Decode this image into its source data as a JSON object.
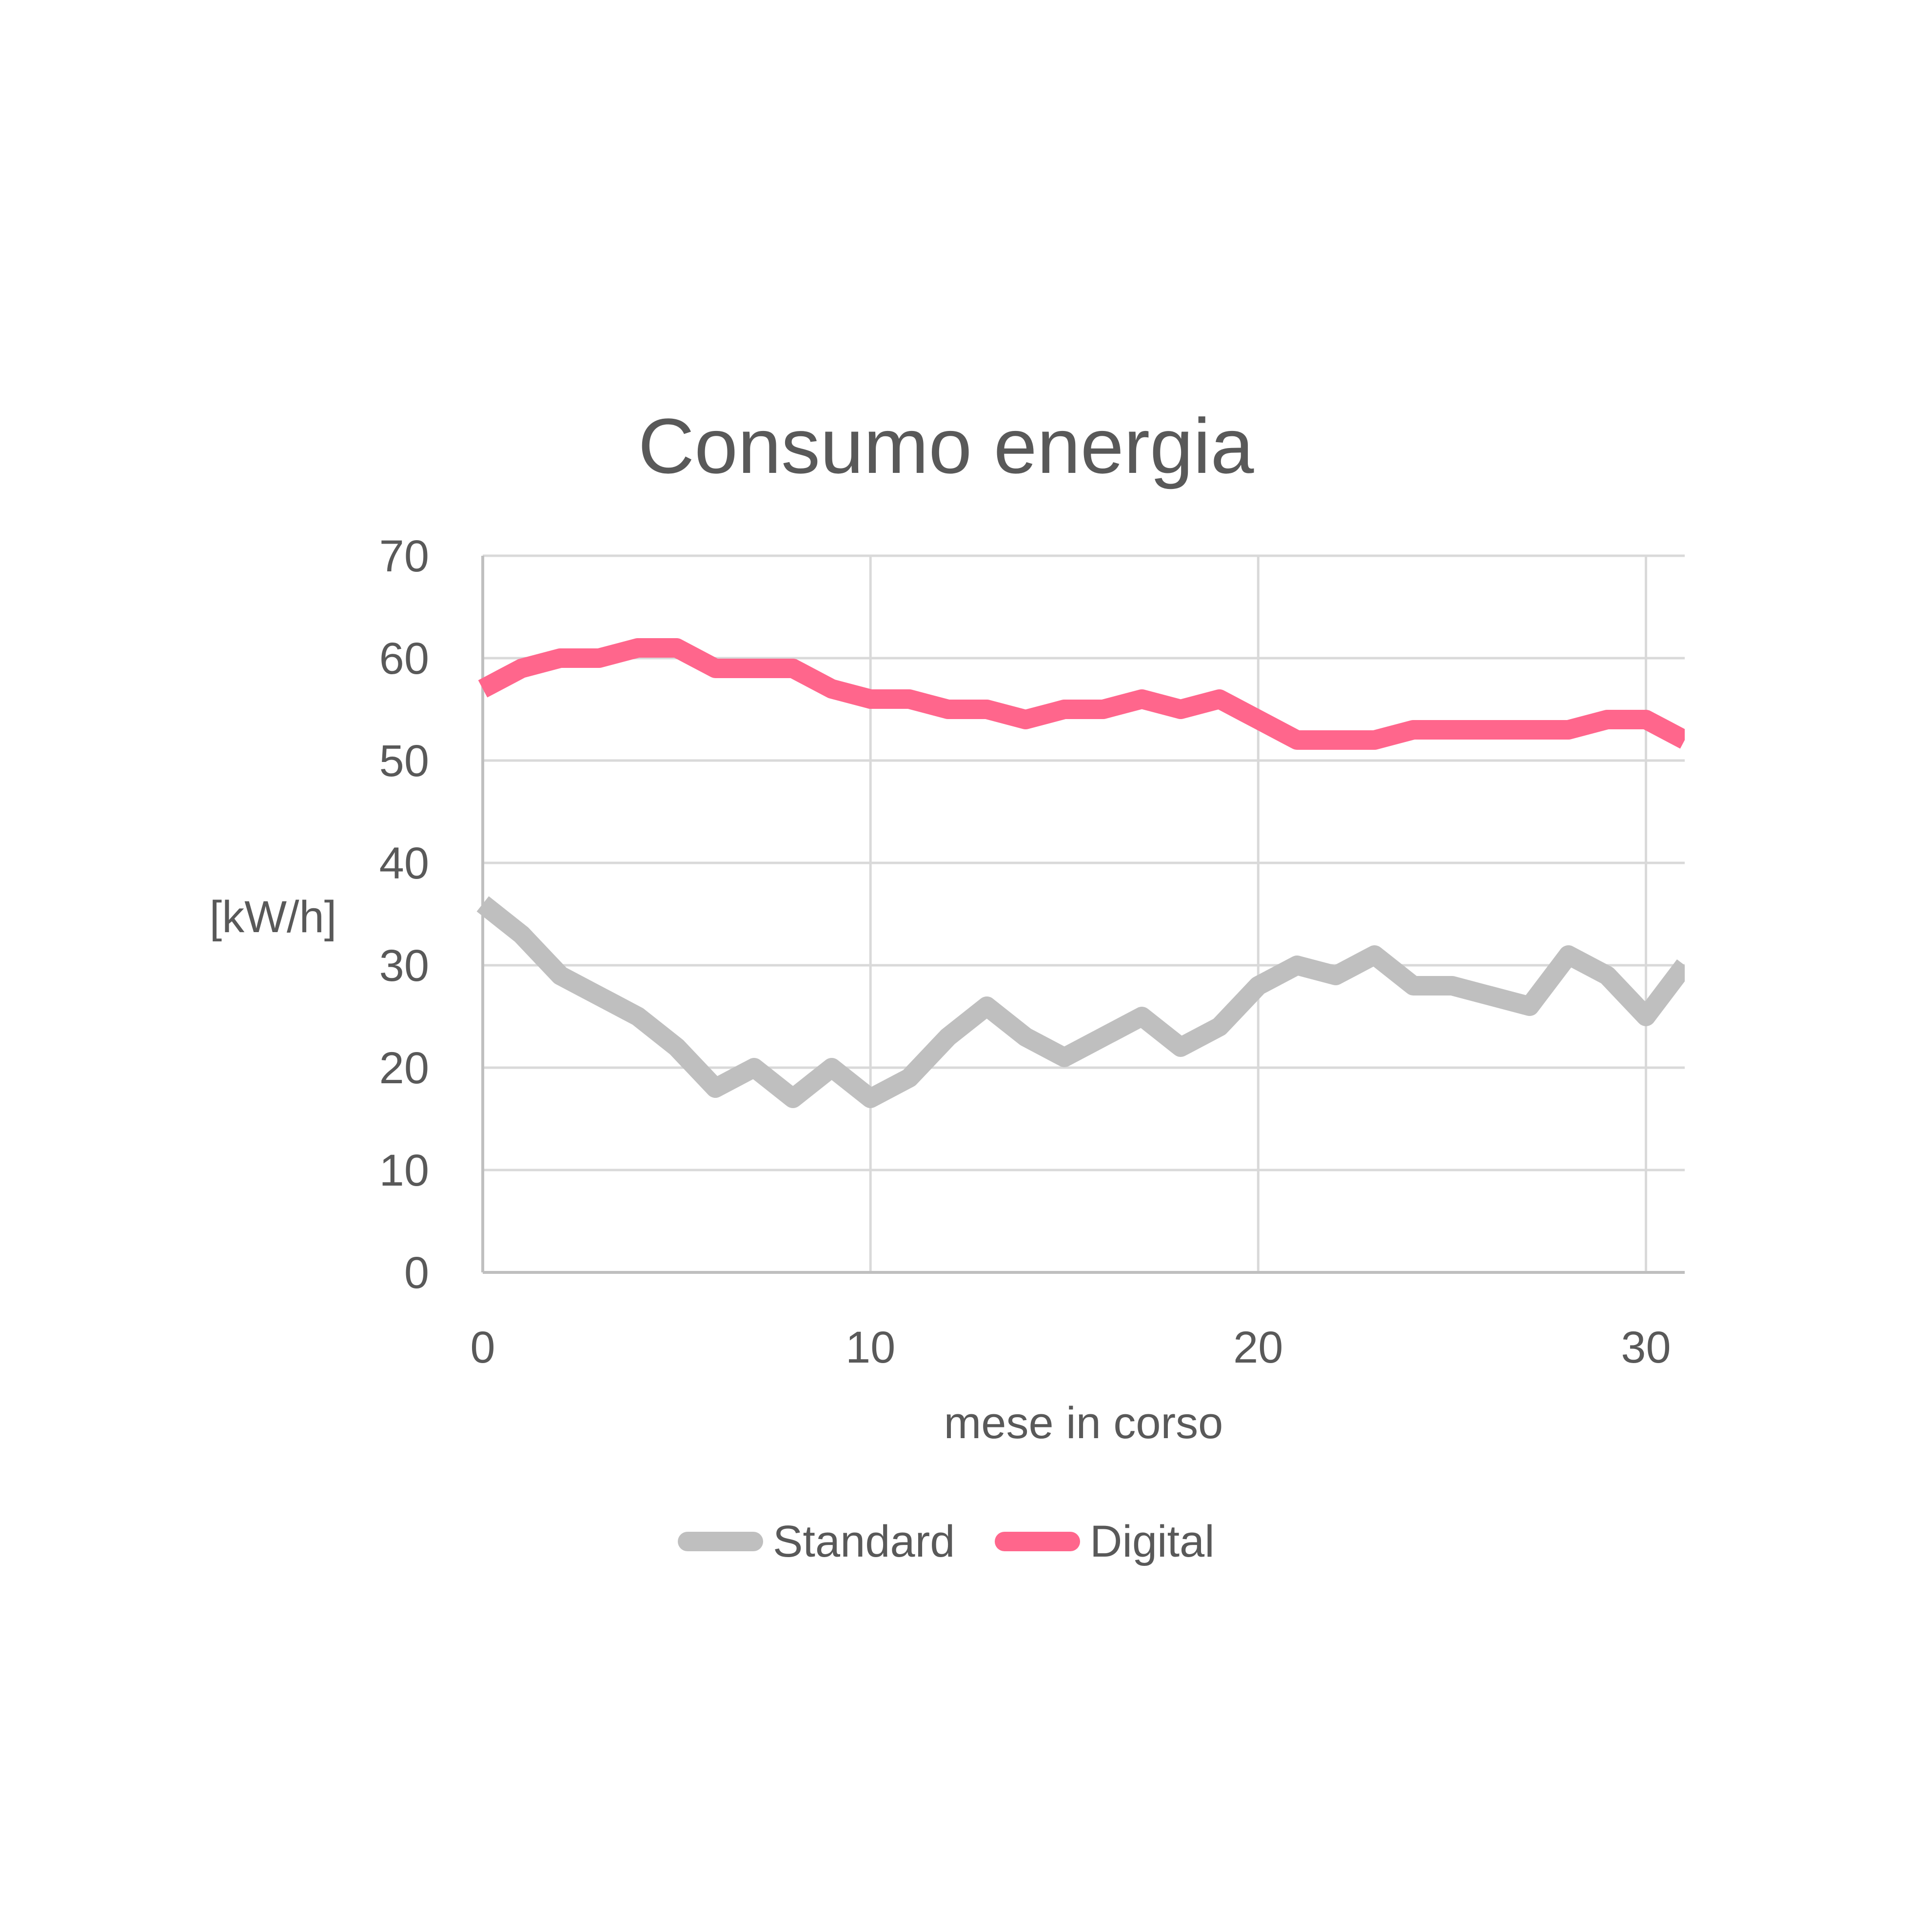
{
  "chart_data": {
    "type": "line",
    "title": "Consumo energia",
    "xlabel": "mese in corso",
    "ylabel": "[kW/h]",
    "xlim": [
      0,
      31
    ],
    "ylim": [
      0,
      70
    ],
    "x_ticks": [
      0,
      10,
      20,
      30
    ],
    "y_ticks": [
      0,
      10,
      20,
      30,
      40,
      50,
      60,
      70
    ],
    "grid": true,
    "legend_position": "bottom",
    "x": [
      0,
      1,
      2,
      3,
      4,
      5,
      6,
      7,
      8,
      9,
      10,
      11,
      12,
      13,
      14,
      15,
      16,
      17,
      18,
      19,
      20,
      21,
      22,
      23,
      24,
      25,
      26,
      27,
      28,
      29,
      30,
      31
    ],
    "series": [
      {
        "name": "Standard",
        "color": "#bfbfbf",
        "values": [
          36,
          33,
          29,
          27,
          25,
          22,
          18,
          20,
          17,
          20,
          17,
          19,
          23,
          26,
          23,
          21,
          23,
          25,
          22,
          24,
          28,
          30,
          29,
          31,
          28,
          28,
          27,
          26,
          31,
          29,
          25,
          30
        ]
      },
      {
        "name": "Digital",
        "color": "#ff668c",
        "values": [
          57,
          59,
          60,
          60,
          61,
          61,
          59,
          59,
          59,
          57,
          56,
          56,
          55,
          55,
          54,
          55,
          55,
          56,
          55,
          56,
          54,
          52,
          52,
          52,
          53,
          53,
          53,
          53,
          53,
          54,
          54,
          52
        ]
      }
    ]
  }
}
